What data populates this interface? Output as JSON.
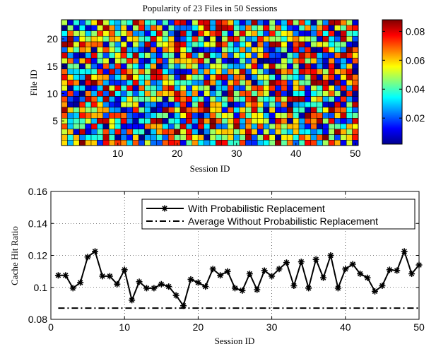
{
  "chart_data": [
    {
      "type": "heatmap",
      "title": "Popularity of 23 Files in 50 Sessions",
      "xlabel": "Session ID",
      "ylabel": "File ID",
      "x_range": [
        1,
        50
      ],
      "y_range": [
        1,
        23
      ],
      "xticks": [
        10,
        20,
        30,
        40,
        50
      ],
      "yticks": [
        5,
        10,
        15,
        20
      ],
      "colormap": "jet",
      "color_range": [
        0.002,
        0.088
      ],
      "colorbar_ticks": [
        0.02,
        0.04,
        0.06,
        0.08
      ],
      "colorbar_tick_labels": [
        "0.02",
        "0.04",
        "0.06",
        "0.08"
      ],
      "grid": false,
      "random_seed": 12345
    },
    {
      "type": "line",
      "xlabel": "Session ID",
      "ylabel": "Cache Hit Ratio",
      "xlim": [
        0,
        50
      ],
      "ylim": [
        0.08,
        0.16
      ],
      "xticks": [
        0,
        10,
        20,
        30,
        40,
        50
      ],
      "yticks": [
        0.08,
        0.1,
        0.12,
        0.14,
        0.16
      ],
      "ytick_labels": [
        "0.08",
        "0.1",
        "0.12",
        "0.14",
        "0.16"
      ],
      "grid": true,
      "legend_position": "top-right",
      "series": [
        {
          "name": "With Probabilistic Replacement",
          "style": "solid-star",
          "color": "#000000",
          "x": [
            1,
            2,
            3,
            4,
            5,
            6,
            7,
            8,
            9,
            10,
            11,
            12,
            13,
            14,
            15,
            16,
            17,
            18,
            19,
            20,
            21,
            22,
            23,
            24,
            25,
            26,
            27,
            28,
            29,
            30,
            31,
            32,
            33,
            34,
            35,
            36,
            37,
            38,
            39,
            40,
            41,
            42,
            43,
            44,
            45,
            46,
            47,
            48,
            49,
            50
          ],
          "values": [
            0.1075,
            0.1075,
            0.0995,
            0.103,
            0.119,
            0.1225,
            0.107,
            0.107,
            0.102,
            0.111,
            0.092,
            0.1035,
            0.0995,
            0.0995,
            0.102,
            0.1005,
            0.095,
            0.0885,
            0.105,
            0.103,
            0.1005,
            0.1115,
            0.1075,
            0.11,
            0.0995,
            0.098,
            0.1085,
            0.0985,
            0.1105,
            0.107,
            0.1115,
            0.1155,
            0.101,
            0.116,
            0.0995,
            0.1175,
            0.106,
            0.12,
            0.0995,
            0.1115,
            0.1145,
            0.1085,
            0.106,
            0.0975,
            0.101,
            0.111,
            0.1105,
            0.1225,
            0.1085,
            0.114
          ]
        },
        {
          "name": "Average Without Probabilistic Replacement",
          "style": "dash-dot",
          "color": "#000000",
          "x": [
            1,
            50
          ],
          "values": [
            0.087,
            0.087
          ]
        }
      ]
    }
  ]
}
